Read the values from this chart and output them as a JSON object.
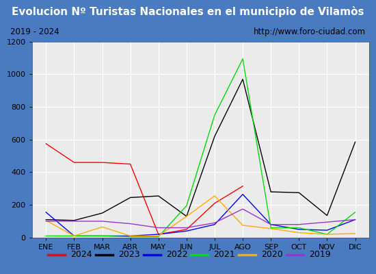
{
  "title": "Evolucion Nº Turistas Nacionales en el municipio de Vilamòs",
  "subtitle_left": "2019 - 2024",
  "subtitle_right": "http://www.foro-ciudad.com",
  "months": [
    "ENE",
    "FEB",
    "MAR",
    "ABR",
    "MAY",
    "JUN",
    "JUL",
    "AGO",
    "SEP",
    "OCT",
    "NOV",
    "DIC"
  ],
  "ylim": [
    0,
    1200
  ],
  "yticks": [
    0,
    200,
    400,
    600,
    800,
    1000,
    1200
  ],
  "series": {
    "2024": {
      "color": "#ff0000",
      "values": [
        575,
        460,
        460,
        450,
        20,
        50,
        210,
        315,
        null,
        null,
        null,
        null
      ]
    },
    "2023": {
      "color": "#000000",
      "values": [
        110,
        105,
        150,
        245,
        255,
        130,
        620,
        970,
        280,
        275,
        135,
        585
      ]
    },
    "2022": {
      "color": "#0000ff",
      "values": [
        155,
        10,
        10,
        10,
        20,
        40,
        80,
        265,
        80,
        50,
        45,
        110
      ]
    },
    "2021": {
      "color": "#00dd00",
      "values": [
        10,
        10,
        10,
        5,
        5,
        195,
        750,
        1095,
        60,
        60,
        20,
        155
      ]
    },
    "2020": {
      "color": "#ffaa00",
      "values": [
        105,
        10,
        65,
        10,
        10,
        130,
        255,
        75,
        55,
        30,
        20,
        25
      ]
    },
    "2019": {
      "color": "#9933cc",
      "values": [
        100,
        100,
        100,
        85,
        60,
        60,
        90,
        175,
        80,
        80,
        95,
        110
      ]
    }
  },
  "title_bg_color": "#4a7abf",
  "title_text_color": "#ffffff",
  "plot_bg_color": "#ebebeb",
  "border_color": "#4a7abf",
  "grid_color": "#ffffff",
  "subtitle_bg_color": "#d8d8d8",
  "legend_bg_color": "#f0f0f0",
  "title_fontsize": 11,
  "subtitle_fontsize": 8.5,
  "tick_fontsize": 8,
  "legend_fontsize": 9
}
